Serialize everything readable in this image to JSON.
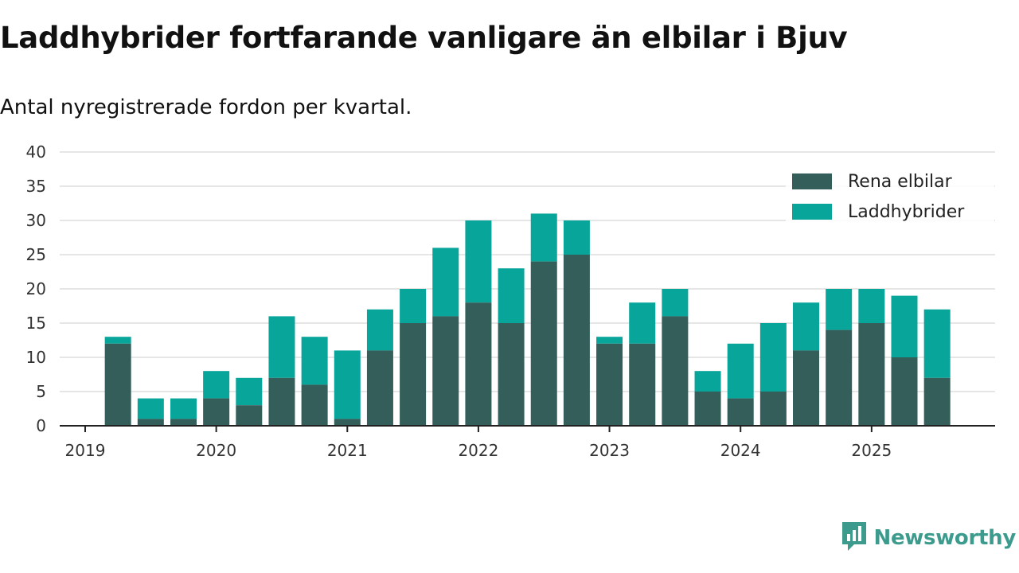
{
  "chart_data": {
    "type": "bar",
    "stacked": true,
    "title": "Laddhybrider fortfarande vanligare än elbilar i Bjuv",
    "subtitle": "Antal nyregistrerade fordon per kvartal.",
    "xlabel": "",
    "ylabel": "",
    "ylim": [
      0,
      40
    ],
    "yticks": [
      0,
      5,
      10,
      15,
      20,
      25,
      30,
      35,
      40
    ],
    "grid": true,
    "legend_position": "top-right",
    "xlim": [
      "2019 Q1",
      "2025 Q4"
    ],
    "x_tick_labels": [
      "2019",
      "2020",
      "2021",
      "2022",
      "2023",
      "2024",
      "2025"
    ],
    "categories": [
      "2019 Q2",
      "2019 Q3",
      "2019 Q4",
      "2020 Q1",
      "2020 Q2",
      "2020 Q3",
      "2020 Q4",
      "2021 Q1",
      "2021 Q2",
      "2021 Q3",
      "2021 Q4",
      "2022 Q1",
      "2022 Q2",
      "2022 Q3",
      "2022 Q4",
      "2023 Q1",
      "2023 Q2",
      "2023 Q3",
      "2023 Q4",
      "2024 Q1",
      "2024 Q2",
      "2024 Q3",
      "2024 Q4",
      "2025 Q1",
      "2025 Q2",
      "2025 Q3"
    ],
    "series": [
      {
        "name": "Rena elbilar",
        "color": "#335e5a",
        "values": [
          12,
          1,
          1,
          4,
          3,
          7,
          6,
          1,
          11,
          15,
          16,
          18,
          15,
          24,
          25,
          12,
          12,
          16,
          5,
          4,
          5,
          11,
          14,
          15,
          10,
          7
        ]
      },
      {
        "name": "Laddhybrider",
        "color": "#08a59a",
        "values": [
          1,
          3,
          3,
          4,
          4,
          9,
          7,
          10,
          6,
          5,
          10,
          12,
          8,
          7,
          5,
          1,
          6,
          4,
          3,
          8,
          10,
          7,
          6,
          5,
          9,
          10
        ]
      }
    ]
  },
  "brand": {
    "name": "Newsworthy",
    "icon": "newsworthy-logo-icon",
    "color": "#3d9b8d"
  }
}
